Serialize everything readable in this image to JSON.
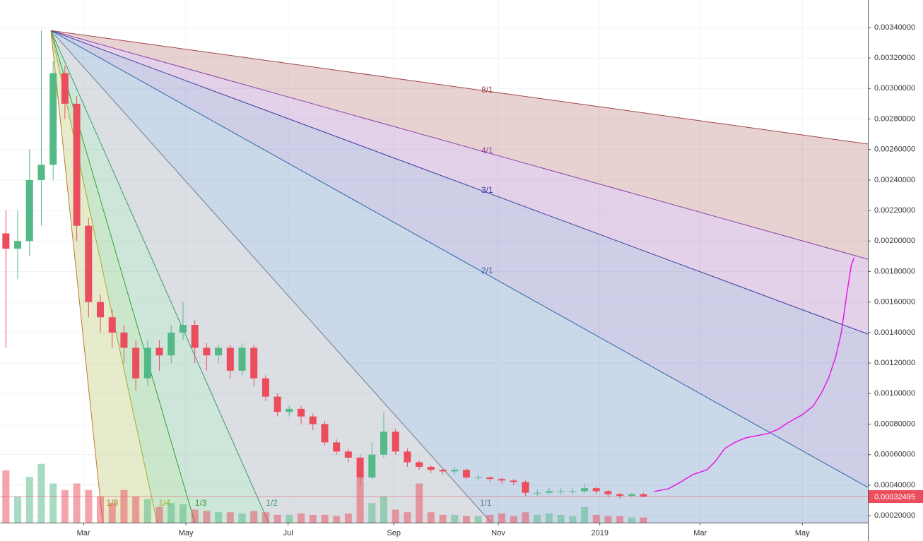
{
  "chart_data": {
    "type": "candlestick",
    "xlim": [
      0,
      73.5
    ],
    "ylim": [
      0.000154,
      0.00358
    ],
    "xticks": [
      {
        "value": 7.07,
        "label": "Mar"
      },
      {
        "value": 15.75,
        "label": "May"
      },
      {
        "value": 24.4,
        "label": "Jul"
      },
      {
        "value": 33.35,
        "label": "Sep"
      },
      {
        "value": 42.2,
        "label": "Nov"
      },
      {
        "value": 50.8,
        "label": "2019"
      },
      {
        "value": 59.3,
        "label": "Mar"
      },
      {
        "value": 67.95,
        "label": "May"
      }
    ],
    "yticks": [
      {
        "value": 0.0002,
        "label": "0.00020000"
      },
      {
        "value": 0.0004,
        "label": "0.00040000"
      },
      {
        "value": 0.0006,
        "label": "0.00060000"
      },
      {
        "value": 0.0008,
        "label": "0.00080000"
      },
      {
        "value": 0.001,
        "label": "0.00100000"
      },
      {
        "value": 0.0012,
        "label": "0.00120000"
      },
      {
        "value": 0.0014,
        "label": "0.00140000"
      },
      {
        "value": 0.0016,
        "label": "0.00160000"
      },
      {
        "value": 0.0018,
        "label": "0.00180000"
      },
      {
        "value": 0.002,
        "label": "0.00200000"
      },
      {
        "value": 0.0022,
        "label": "0.00220000"
      },
      {
        "value": 0.0024,
        "label": "0.00240000"
      },
      {
        "value": 0.0026,
        "label": "0.00260000"
      },
      {
        "value": 0.0028,
        "label": "0.00280000"
      },
      {
        "value": 0.003,
        "label": "0.00300000"
      },
      {
        "value": 0.0032,
        "label": "0.00320000"
      },
      {
        "value": 0.0034,
        "label": "0.00340000"
      }
    ],
    "grid": true,
    "up_color": "#53b987",
    "down_color": "#eb4d5c",
    "open": [
      0.00205,
      0.00195,
      0.002,
      0.0024,
      0.0025,
      0.0031,
      0.0029,
      0.0021,
      0.0016,
      0.0015,
      0.0014,
      0.0013,
      0.0011,
      0.0013,
      0.00125,
      0.0014,
      0.00145,
      0.0013,
      0.00125,
      0.0013,
      0.00115,
      0.0013,
      0.0011,
      0.00098,
      0.00088,
      0.0009,
      0.00085,
      0.0008,
      0.00068,
      0.00062,
      0.00058,
      0.00045,
      0.0006,
      0.00075,
      0.00062,
      0.00055,
      0.00052,
      0.0005,
      0.00049,
      0.0005,
      0.00045,
      0.00045,
      0.00044,
      0.00043,
      0.00042,
      0.00035,
      0.00035,
      0.00036,
      0.00036,
      0.00036,
      0.00038,
      0.00036,
      0.00034,
      0.00033,
      0.00034
    ],
    "high": [
      0.0022,
      0.0022,
      0.0026,
      0.00338,
      0.00318,
      0.00315,
      0.00295,
      0.00215,
      0.00165,
      0.00155,
      0.00145,
      0.00135,
      0.00135,
      0.00135,
      0.00145,
      0.0016,
      0.00148,
      0.00133,
      0.00132,
      0.00132,
      0.00133,
      0.00132,
      0.00112,
      0.001,
      0.00092,
      0.00092,
      0.00087,
      0.00082,
      0.0007,
      0.00064,
      0.0006,
      0.00068,
      0.00088,
      0.00077,
      0.00064,
      0.00056,
      0.00053,
      0.00051,
      0.00052,
      0.00051,
      0.00047,
      0.00046,
      0.00045,
      0.00044,
      0.00043,
      0.00037,
      0.00038,
      0.00038,
      0.00038,
      0.00041,
      0.00039,
      0.00037,
      0.00035,
      0.00035,
      0.00035
    ],
    "low": [
      0.0013,
      0.00175,
      0.0019,
      0.0021,
      0.0024,
      0.0028,
      0.002,
      0.0015,
      0.0014,
      0.0013,
      0.0012,
      0.00102,
      0.00105,
      0.00115,
      0.0012,
      0.00135,
      0.0012,
      0.00115,
      0.0012,
      0.0011,
      0.00112,
      0.00105,
      0.00095,
      0.00085,
      0.00085,
      0.0008,
      0.00076,
      0.00066,
      0.0006,
      0.00055,
      0.0004,
      0.00044,
      0.00058,
      0.0006,
      0.00052,
      0.0005,
      0.00048,
      0.00047,
      0.00047,
      0.00044,
      0.00043,
      0.00042,
      0.00041,
      0.0004,
      0.00033,
      0.00033,
      0.00034,
      0.00034,
      0.00034,
      0.00035,
      0.00034,
      0.00032,
      0.00031,
      0.00032,
      0.00032
    ],
    "close": [
      0.00195,
      0.002,
      0.0024,
      0.0025,
      0.0031,
      0.0029,
      0.0021,
      0.0016,
      0.0015,
      0.0014,
      0.0013,
      0.0011,
      0.0013,
      0.00125,
      0.0014,
      0.00145,
      0.0013,
      0.00125,
      0.0013,
      0.00115,
      0.0013,
      0.0011,
      0.00098,
      0.00088,
      0.0009,
      0.00085,
      0.0008,
      0.00068,
      0.00062,
      0.00058,
      0.00045,
      0.0006,
      0.00075,
      0.00062,
      0.00055,
      0.00052,
      0.0005,
      0.00049,
      0.0005,
      0.00045,
      0.00045,
      0.00044,
      0.00043,
      0.00042,
      0.00035,
      0.00035,
      0.00036,
      0.00036,
      0.00036,
      0.00038,
      0.00036,
      0.00034,
      0.00033,
      0.00034,
      0.00032495
    ],
    "volume_lim": [
      0,
      100
    ],
    "volume": [
      40,
      20,
      35,
      45,
      30,
      25,
      30,
      25,
      20,
      15,
      25,
      20,
      18,
      12,
      15,
      14,
      10,
      9,
      8,
      8,
      7,
      9,
      8,
      6,
      6,
      7,
      6,
      6,
      5,
      7,
      35,
      15,
      20,
      10,
      8,
      30,
      8,
      6,
      6,
      5,
      5,
      6,
      7,
      5,
      8,
      6,
      7,
      6,
      5,
      12,
      6,
      5,
      5,
      4,
      4
    ],
    "last_price": {
      "value": 0.00032495,
      "label": "0.00032495"
    },
    "gann_fan": {
      "origin": [
        4.31,
        0.00338
      ],
      "levels": [
        {
          "label": "8/1",
          "end": [
            73.5,
            0.002636
          ],
          "color": "#a04848"
        },
        {
          "label": "4/1",
          "end": [
            73.5,
            0.001881
          ],
          "color": "#8e44a8"
        },
        {
          "label": "3/1",
          "end": [
            73.5,
            0.00139
          ],
          "color": "#3c3ca0"
        },
        {
          "label": "2/1",
          "end": [
            73.5,
            0.000385
          ],
          "color": "#2e63a8"
        },
        {
          "label": "1/1",
          "end": [
            41.6,
            0.000154
          ],
          "color": "#6f7f8f"
        },
        {
          "label": "1/2",
          "end": [
            22.75,
            0.000154
          ],
          "color": "#3a9a6a"
        },
        {
          "label": "1/3",
          "end": [
            16.5,
            0.000154
          ],
          "color": "#2fa02f"
        },
        {
          "label": "1/4",
          "end": [
            13.3,
            0.000154
          ],
          "color": "#9aae2f"
        },
        {
          "label": "1/8",
          "end": [
            8.7,
            0.000154
          ],
          "color": "#c07a28"
        }
      ]
    },
    "projection": {
      "color": "#e619e6",
      "x": [
        55.39,
        56.59,
        57.49,
        58.68,
        59.88,
        60.6,
        61.38,
        62.28,
        63.17,
        64.97,
        65.87,
        66.77,
        67.96,
        68.86,
        69.58,
        70.18,
        70.78,
        71.26,
        71.68,
        72.1,
        72.34
      ],
      "y": [
        0.000358,
        0.000376,
        0.000413,
        0.000469,
        0.000501,
        0.000557,
        0.00064,
        0.000682,
        0.00071,
        0.000737,
        0.000765,
        0.000811,
        0.000862,
        0.000918,
        0.001006,
        0.001103,
        0.001242,
        0.001404,
        0.001636,
        0.001844,
        0.00189
      ]
    }
  }
}
